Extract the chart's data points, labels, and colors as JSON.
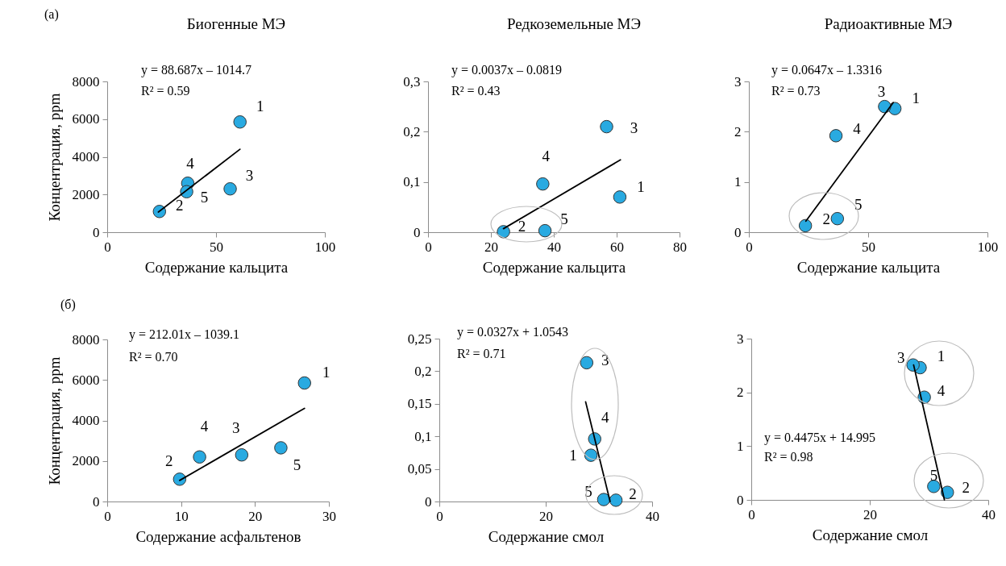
{
  "chart_data": [
    {
      "type": "scatter",
      "title": "Биогенные МЭ",
      "xlabel": "Содержание кальцита",
      "ylabel": "Концентрация, ppm",
      "x": [
        61,
        24,
        56.5,
        37,
        36.5
      ],
      "xlim": [
        0,
        100
      ],
      "xticks": [
        0,
        50,
        100
      ],
      "ylim": [
        0,
        8000
      ],
      "yticks": [
        0,
        2000,
        4000,
        6000,
        8000
      ],
      "series": [
        {
          "type": "scatter",
          "marker": "circle",
          "color": "#29aae1",
          "values": [
            5850,
            1100,
            2300,
            2600,
            2150
          ]
        },
        {
          "type": "line",
          "color": "#000000",
          "x": [
            23.5,
            61
          ],
          "values": [
            1070,
            4400
          ]
        }
      ],
      "annotations": [
        "(a)",
        "y = 88.687x – 1014.7",
        "R² = 0.59",
        {
          "text": "1",
          "x": 61,
          "y": 5850
        },
        {
          "text": "2",
          "x": 24,
          "y": 1100
        },
        {
          "text": "3",
          "x": 56.5,
          "y": 2300
        },
        {
          "text": "4",
          "x": 37,
          "y": 2600
        },
        {
          "text": "5",
          "x": 36.5,
          "y": 2150
        }
      ]
    },
    {
      "type": "scatter",
      "title": "Редкоземельные МЭ",
      "xlabel": "Содержание кальцита",
      "x": [
        61,
        24,
        56.8,
        36.5,
        37.2
      ],
      "xlim": [
        0,
        80
      ],
      "xticks": [
        0,
        20,
        40,
        60,
        80
      ],
      "ylim": [
        0,
        0.3
      ],
      "yticks": [
        0,
        {
          "value": 0.1,
          "label": "0,1"
        },
        {
          "value": 0.2,
          "label": "0,2"
        },
        {
          "value": 0.3,
          "label": "0,3"
        }
      ],
      "series": [
        {
          "type": "scatter",
          "marker": "circle",
          "color": "#29aae1",
          "values": [
            0.07,
            0.001,
            0.21,
            0.096,
            0.003
          ]
        },
        {
          "type": "line",
          "color": "#000000",
          "x": [
            24,
            61.2
          ],
          "values": [
            0.007,
            0.144
          ]
        }
      ],
      "annotations": [
        "y = 0.0037x – 0.0819",
        "R² = 0.43",
        {
          "text": "1",
          "x": 61,
          "y": 0.07
        },
        {
          "text": "2",
          "x": 24,
          "y": 0.001
        },
        {
          "text": "3",
          "x": 56.8,
          "y": 0.21
        },
        {
          "text": "4",
          "x": 36.5,
          "y": 0.096
        },
        {
          "text": "5",
          "x": 37.2,
          "y": 0.003
        }
      ]
    },
    {
      "type": "scatter",
      "title": "Радиоактивные МЭ",
      "xlabel": "Содержание кальцита",
      "x": [
        61.2,
        23.7,
        56.9,
        36.5,
        37.1
      ],
      "xlim": [
        0,
        100
      ],
      "xticks": [
        0,
        50,
        100
      ],
      "ylim": [
        0,
        3
      ],
      "yticks": [
        0,
        1,
        2,
        3
      ],
      "series": [
        {
          "type": "scatter",
          "marker": "circle",
          "color": "#29aae1",
          "values": [
            2.46,
            0.13,
            2.5,
            1.92,
            0.27
          ]
        },
        {
          "type": "line",
          "color": "#000000",
          "x": [
            23.9,
            60.5
          ],
          "values": [
            0.22,
            2.58
          ]
        }
      ],
      "annotations": [
        "y = 0.0647x – 1.3316",
        "R² = 0.73",
        {
          "text": "1",
          "x": 61.2,
          "y": 2.46
        },
        {
          "text": "2",
          "x": 23.7,
          "y": 0.13
        },
        {
          "text": "3",
          "x": 56.9,
          "y": 2.5
        },
        {
          "text": "4",
          "x": 36.5,
          "y": 1.92
        },
        {
          "text": "5",
          "x": 37.1,
          "y": 0.27
        }
      ]
    },
    {
      "type": "scatter",
      "xlabel": "Содержание асфальтенов",
      "ylabel": "Концентрация, ppm",
      "x": [
        26.7,
        9.8,
        18.2,
        12.5,
        23.5
      ],
      "xlim": [
        0,
        30
      ],
      "xticks": [
        0,
        10,
        20,
        30
      ],
      "ylim": [
        0,
        8000
      ],
      "yticks": [
        0,
        2000,
        4000,
        6000,
        8000
      ],
      "series": [
        {
          "type": "scatter",
          "marker": "circle",
          "color": "#29aae1",
          "values": [
            5850,
            1100,
            2300,
            2200,
            2650
          ]
        },
        {
          "type": "line",
          "color": "#000000",
          "x": [
            9.8,
            26.7
          ],
          "values": [
            1040,
            4600
          ]
        }
      ],
      "annotations": [
        "(б)",
        "y = 212.01x – 1039.1",
        "R² = 0.70",
        {
          "text": "1",
          "x": 26.7,
          "y": 5850
        },
        {
          "text": "2",
          "x": 9.8,
          "y": 1100
        },
        {
          "text": "3",
          "x": 18.2,
          "y": 2300
        },
        {
          "text": "4",
          "x": 12.5,
          "y": 2200
        },
        {
          "text": "5",
          "x": 23.5,
          "y": 2650
        }
      ]
    },
    {
      "type": "scatter",
      "xlabel": "Содержание смол",
      "x": [
        28.5,
        33.2,
        27.7,
        29.2,
        30.9
      ],
      "xlim": [
        0,
        40
      ],
      "xticks": [
        0,
        20,
        40
      ],
      "ylim": [
        0,
        0.25
      ],
      "yticks": [
        0,
        {
          "value": 0.05,
          "label": "0,05"
        },
        {
          "value": 0.1,
          "label": "0,1"
        },
        {
          "value": 0.15,
          "label": "0,15"
        },
        {
          "value": 0.2,
          "label": "0,2"
        },
        {
          "value": 0.25,
          "label": "0,25"
        }
      ],
      "series": [
        {
          "type": "scatter",
          "marker": "circle",
          "color": "#29aae1",
          "values": [
            0.071,
            0.002,
            0.213,
            0.096,
            0.003
          ]
        },
        {
          "type": "line",
          "color": "#000000",
          "x": [
            27.5,
            32.1
          ],
          "values": [
            0.153,
            0
          ]
        }
      ],
      "annotations": [
        "y = 0.0327x + 1.0543",
        "R² = 0.71",
        {
          "text": "1",
          "x": 28.5,
          "y": 0.071
        },
        {
          "text": "2",
          "x": 33.2,
          "y": 0.002
        },
        {
          "text": "3",
          "x": 27.7,
          "y": 0.213
        },
        {
          "text": "4",
          "x": 29.2,
          "y": 0.096
        },
        {
          "text": "5",
          "x": 30.9,
          "y": 0.003
        }
      ]
    },
    {
      "type": "scatter",
      "xlabel": "Содержание смол",
      "x": [
        28.5,
        33.1,
        27.3,
        29.2,
        30.8
      ],
      "xlim": [
        0,
        40
      ],
      "xticks": [
        0,
        20,
        40
      ],
      "ylim": [
        0,
        3
      ],
      "yticks": [
        0,
        1,
        2,
        3
      ],
      "series": [
        {
          "type": "scatter",
          "marker": "circle",
          "color": "#29aae1",
          "values": [
            2.46,
            0.14,
            2.51,
            1.91,
            0.25
          ]
        },
        {
          "type": "line",
          "color": "#000000",
          "x": [
            27.4,
            32.6
          ],
          "values": [
            2.51,
            0
          ]
        }
      ],
      "annotations": [
        "y = 0.4475x + 14.995",
        "R² = 0.98",
        {
          "text": "1",
          "x": 28.5,
          "y": 2.46
        },
        {
          "text": "2",
          "x": 33.1,
          "y": 0.14
        },
        {
          "text": "3",
          "x": 27.3,
          "y": 2.51
        },
        {
          "text": "4",
          "x": 29.2,
          "y": 1.91
        },
        {
          "text": "5",
          "x": 30.8,
          "y": 0.25
        }
      ]
    }
  ]
}
